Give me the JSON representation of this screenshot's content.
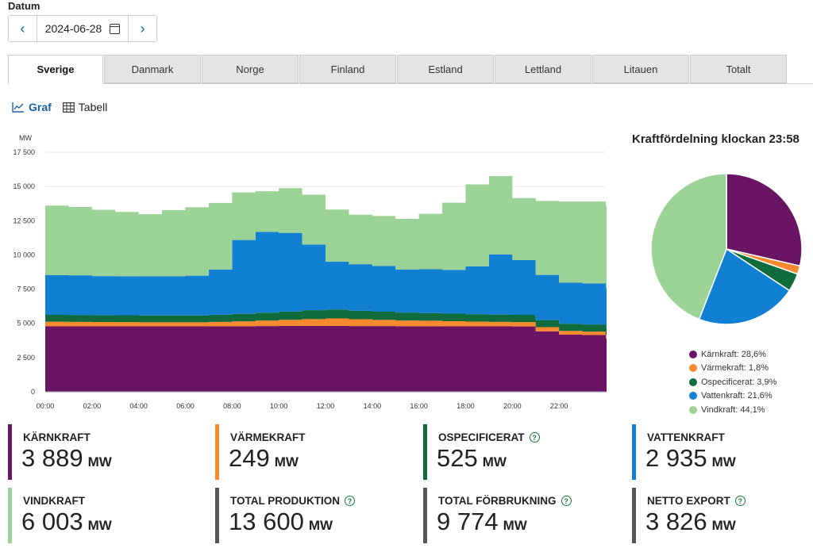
{
  "datum": {
    "label": "Datum",
    "value": "2024-06-28"
  },
  "tabs": [
    {
      "label": "Sverige",
      "active": true
    },
    {
      "label": "Danmark"
    },
    {
      "label": "Norge"
    },
    {
      "label": "Finland"
    },
    {
      "label": "Estland"
    },
    {
      "label": "Lettland"
    },
    {
      "label": "Litauen"
    },
    {
      "label": "Totalt"
    }
  ],
  "view": {
    "graf": "Graf",
    "tabell": "Tabell"
  },
  "colors": {
    "karnkraft": "#6a1466",
    "varmekraft": "#f7892e",
    "ospecificerat": "#0f6b3c",
    "vattenkraft": "#1280d2",
    "vindkraft": "#9bd295"
  },
  "chart_data": [
    {
      "type": "area",
      "ylabel": "MW",
      "ylim": [
        0,
        17500
      ],
      "yticks": [
        "0",
        "2 500",
        "5 000",
        "7 500",
        "10 000",
        "12 500",
        "15 000",
        "17 500"
      ],
      "xticks": [
        "00:00",
        "02:00",
        "04:00",
        "06:00",
        "08:00",
        "10:00",
        "12:00",
        "14:00",
        "16:00",
        "18:00",
        "20:00",
        "22:00"
      ],
      "x": [
        0,
        1,
        2,
        3,
        4,
        5,
        6,
        7,
        8,
        9,
        10,
        11,
        12,
        13,
        14,
        15,
        16,
        17,
        18,
        19,
        20,
        21,
        22,
        23,
        24
      ],
      "stacked": true,
      "grid": "horizontal",
      "series": [
        {
          "name": "Kärnkraft",
          "values": [
            4780,
            4780,
            4780,
            4780,
            4780,
            4780,
            4780,
            4790,
            4790,
            4800,
            4810,
            4810,
            4810,
            4800,
            4800,
            4790,
            4790,
            4780,
            4780,
            4780,
            4770,
            4420,
            4170,
            4140,
            3889
          ]
        },
        {
          "name": "Värmekraft",
          "values": [
            340,
            330,
            320,
            310,
            300,
            300,
            300,
            320,
            350,
            400,
            450,
            500,
            550,
            500,
            450,
            420,
            400,
            380,
            350,
            330,
            320,
            300,
            280,
            260,
            249
          ]
        },
        {
          "name": "Ospecificerat",
          "values": [
            500,
            500,
            500,
            500,
            500,
            500,
            500,
            520,
            550,
            580,
            600,
            650,
            650,
            620,
            600,
            580,
            560,
            550,
            540,
            530,
            530,
            520,
            520,
            520,
            525
          ]
        },
        {
          "name": "Vattenkraft",
          "values": [
            2900,
            2900,
            2850,
            2850,
            2850,
            2850,
            2900,
            3300,
            5400,
            5900,
            5750,
            4800,
            3500,
            3400,
            3350,
            3150,
            3200,
            3200,
            3500,
            4400,
            4000,
            3300,
            3000,
            2990,
            2935
          ]
        },
        {
          "name": "Vindkraft",
          "values": [
            5080,
            5000,
            4850,
            4700,
            4550,
            4850,
            5000,
            4870,
            3480,
            2970,
            3270,
            3640,
            3800,
            3620,
            3640,
            3690,
            4050,
            4900,
            5980,
            5720,
            4530,
            5400,
            5930,
            5990,
            6003
          ]
        }
      ]
    },
    {
      "type": "pie",
      "title": "Kraftfördelning klockan 23:58",
      "slices": [
        {
          "name": "Kärnkraft",
          "label": "Kärnkraft: 28,6%",
          "value": 28.6
        },
        {
          "name": "Värmekraft",
          "label": "Värmekraft: 1,8%",
          "value": 1.8
        },
        {
          "name": "Ospecificerat",
          "label": "Ospecificerat: 3,9%",
          "value": 3.9
        },
        {
          "name": "Vattenkraft",
          "label": "Vattenkraft: 21,6%",
          "value": 21.6
        },
        {
          "name": "Vindkraft",
          "label": "Vindkraft: 44,1%",
          "value": 44.1
        }
      ]
    }
  ],
  "cards": [
    {
      "label": "KÄRNKRAFT",
      "value": "3 889",
      "unit": "MW",
      "color": "#6a1466",
      "help": false
    },
    {
      "label": "VÄRMEKRAFT",
      "value": "249",
      "unit": "MW",
      "color": "#f7892e",
      "help": false
    },
    {
      "label": "OSPECIFICERAT",
      "value": "525",
      "unit": "MW",
      "color": "#0f6b3c",
      "help": true
    },
    {
      "label": "VATTENKRAFT",
      "value": "2 935",
      "unit": "MW",
      "color": "#1280d2",
      "help": false
    },
    {
      "label": "VINDKRAFT",
      "value": "6 003",
      "unit": "MW",
      "color": "#9bd295",
      "help": false
    },
    {
      "label": "TOTAL PRODUKTION",
      "value": "13 600",
      "unit": "MW",
      "color": "#555555",
      "help": true
    },
    {
      "label": "TOTAL FÖRBRUKNING",
      "value": "9 774",
      "unit": "MW",
      "color": "#555555",
      "help": true
    },
    {
      "label": "NETTO EXPORT",
      "value": "3 826",
      "unit": "MW",
      "color": "#555555",
      "help": true
    }
  ]
}
